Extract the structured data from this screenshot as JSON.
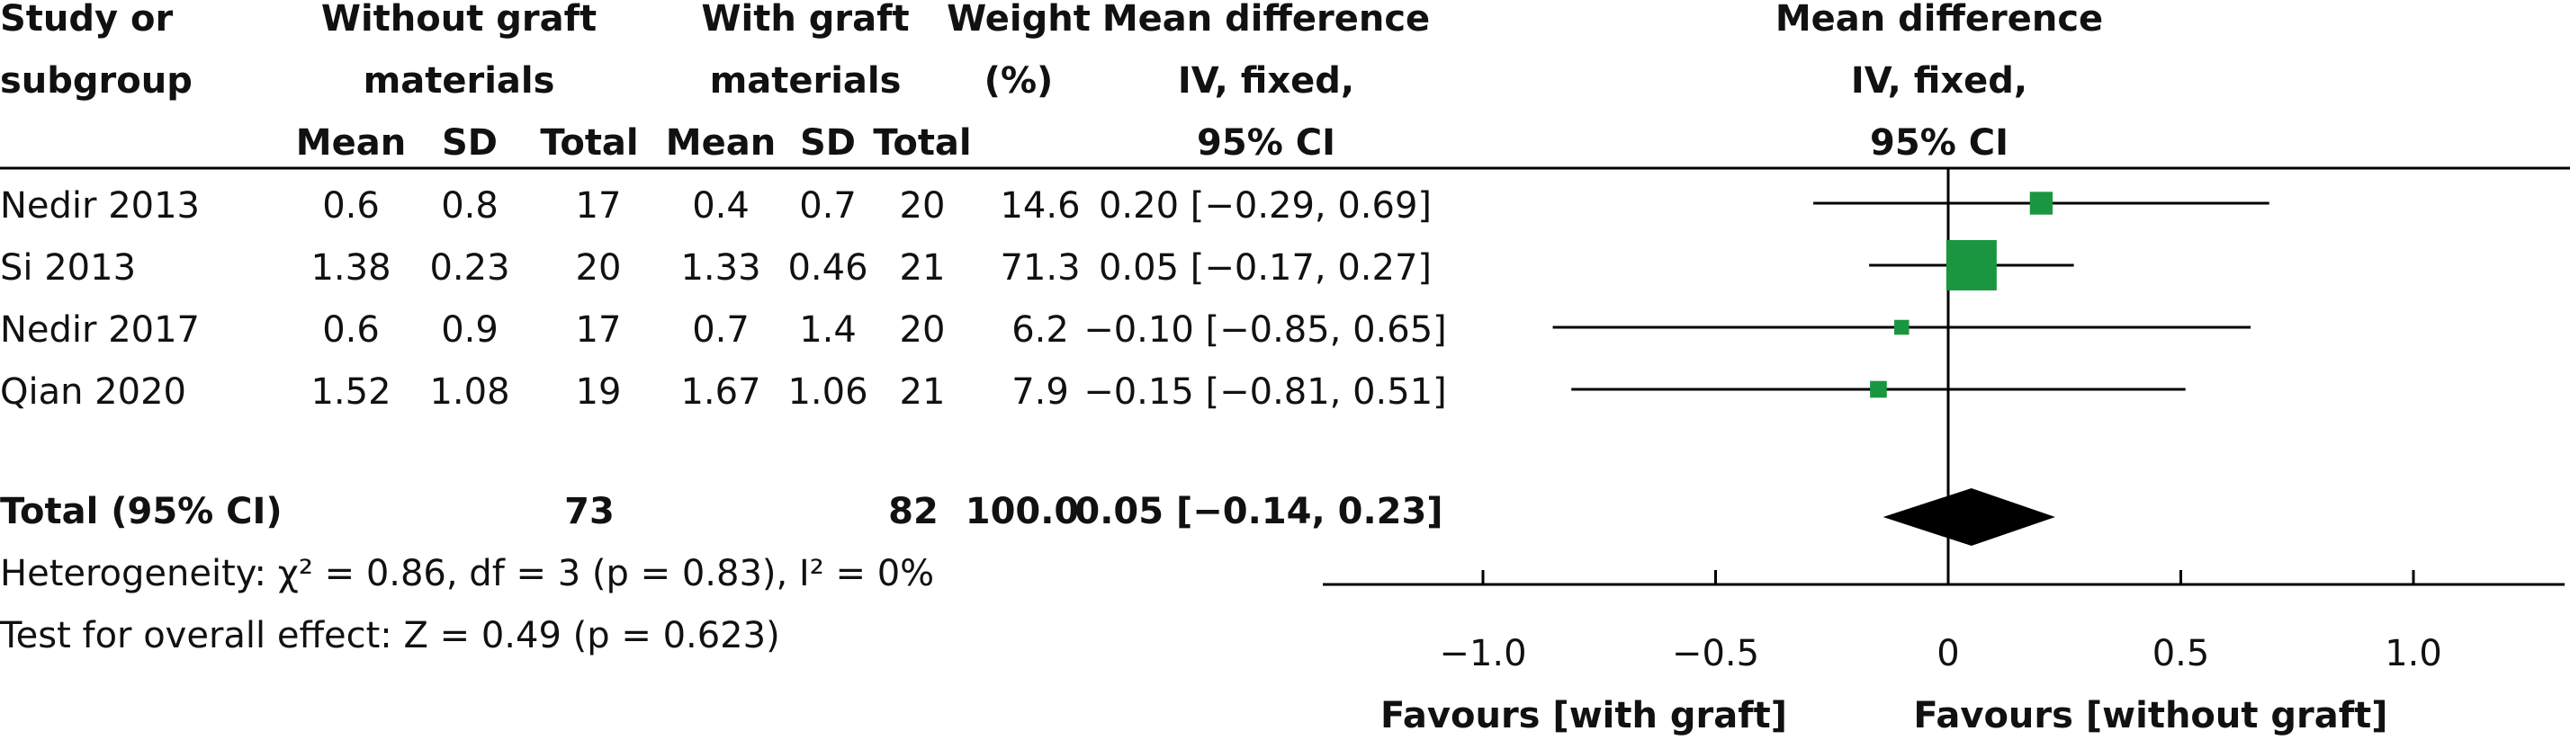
{
  "header": {
    "study": [
      "Study or",
      "subgroup"
    ],
    "group1": [
      "Without graft",
      "materials"
    ],
    "group2": [
      "With graft",
      "materials"
    ],
    "weight": [
      "Weight",
      "(%)"
    ],
    "md_text": [
      "Mean difference",
      "IV, fixed,",
      "95% CI"
    ],
    "md_plot": [
      "Mean difference",
      "IV, fixed,",
      "95% CI"
    ],
    "subcols": [
      "Mean",
      "SD",
      "Total",
      "Mean",
      "SD",
      "Total"
    ]
  },
  "studies": [
    {
      "name": "Nedir 2013",
      "mean1": "0.6",
      "sd1": "0.8",
      "total1": "17",
      "mean2": "0.4",
      "sd2": "0.7",
      "total2": "20",
      "weight": "14.6",
      "ci_text": "0.20 [−0.29, 0.69]"
    },
    {
      "name": "Si 2013",
      "mean1": "1.38",
      "sd1": "0.23",
      "total1": "20",
      "mean2": "1.33",
      "sd2": "0.46",
      "total2": "21",
      "weight": "71.3",
      "ci_text": "0.05 [−0.17, 0.27]"
    },
    {
      "name": "Nedir 2017",
      "mean1": "0.6",
      "sd1": "0.9",
      "total1": "17",
      "mean2": "0.7",
      "sd2": "1.4",
      "total2": "20",
      "weight": "6.2",
      "ci_text": "−0.10 [−0.85, 0.65]"
    },
    {
      "name": "Qian 2020",
      "mean1": "1.52",
      "sd1": "1.08",
      "total1": "19",
      "mean2": "1.67",
      "sd2": "1.06",
      "total2": "21",
      "weight": "7.9",
      "ci_text": "−0.15 [−0.81, 0.51]"
    }
  ],
  "total": {
    "label": "Total (95% CI)",
    "total1": "73",
    "total2": "82",
    "weight": "100.0",
    "ci_text": "0.05 [−0.14, 0.23]"
  },
  "footer": {
    "heterogeneity": "Heterogeneity: χ² = 0.86, df = 3 (p = 0.83), I² = 0%",
    "overall": "Test for overall effect: Z = 0.49 (p = 0.623)"
  },
  "axis": {
    "ticks": [
      "−1.0",
      "−0.5",
      "0",
      "0.5",
      "1.0"
    ],
    "favours_left": "Favours [with graft]",
    "favours_right": "Favours [without graft]"
  },
  "colors": {
    "marker": "#1a9641",
    "diamond": "#000000"
  },
  "chart_data": {
    "type": "forest",
    "x_range": [
      -1.3,
      1.3
    ],
    "tick_values": [
      -1.0,
      -0.5,
      0,
      0.5,
      1.0
    ],
    "reference_line": 0,
    "studies": [
      {
        "name": "Nedir 2013",
        "md": 0.2,
        "lo": -0.29,
        "hi": 0.69,
        "weight": 14.6
      },
      {
        "name": "Si 2013",
        "md": 0.05,
        "lo": -0.17,
        "hi": 0.27,
        "weight": 71.3
      },
      {
        "name": "Nedir 2017",
        "md": -0.1,
        "lo": -0.85,
        "hi": 0.65,
        "weight": 6.2
      },
      {
        "name": "Qian 2020",
        "md": -0.15,
        "lo": -0.81,
        "hi": 0.51,
        "weight": 7.9
      }
    ],
    "pooled": {
      "md": 0.05,
      "lo": -0.14,
      "hi": 0.23
    }
  }
}
